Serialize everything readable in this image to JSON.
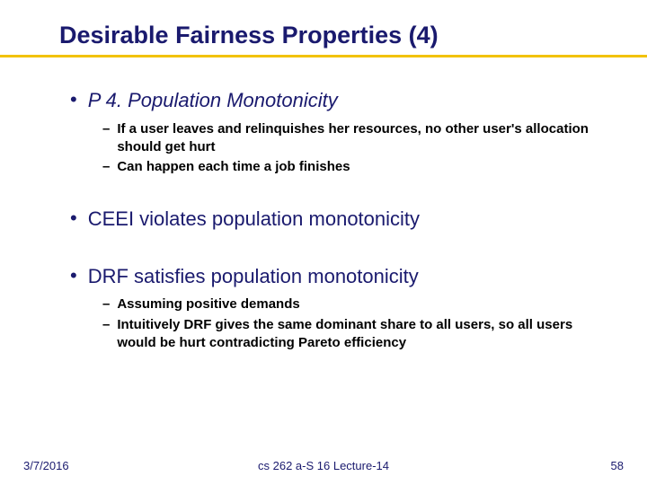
{
  "title": "Desirable Fairness Properties (4)",
  "colors": {
    "title_text": "#1a1a6e",
    "underline": "#f2c200",
    "body_main": "#1a1a6e",
    "body_sub": "#000000",
    "background": "#ffffff"
  },
  "fontsize": {
    "title": 27,
    "bullet1": 22,
    "bullet2": 15,
    "footer": 13
  },
  "bullets": [
    {
      "text": "P 4. Population Monotonicity",
      "italic": true,
      "sub": [
        "If a user leaves and relinquishes her resources, no other user's allocation should get hurt",
        "Can happen each time a job finishes"
      ]
    },
    {
      "text": "CEEI violates population monotonicity",
      "italic": false,
      "sub": []
    },
    {
      "text": "DRF satisfies population monotonicity",
      "italic": false,
      "sub": [
        "Assuming positive demands",
        "Intuitively DRF gives the same dominant share to all users, so all users would be hurt contradicting Pareto efficiency"
      ]
    }
  ],
  "footer": {
    "date": "3/7/2016",
    "center": "cs 262 a-S 16 Lecture-14",
    "page": "58"
  }
}
